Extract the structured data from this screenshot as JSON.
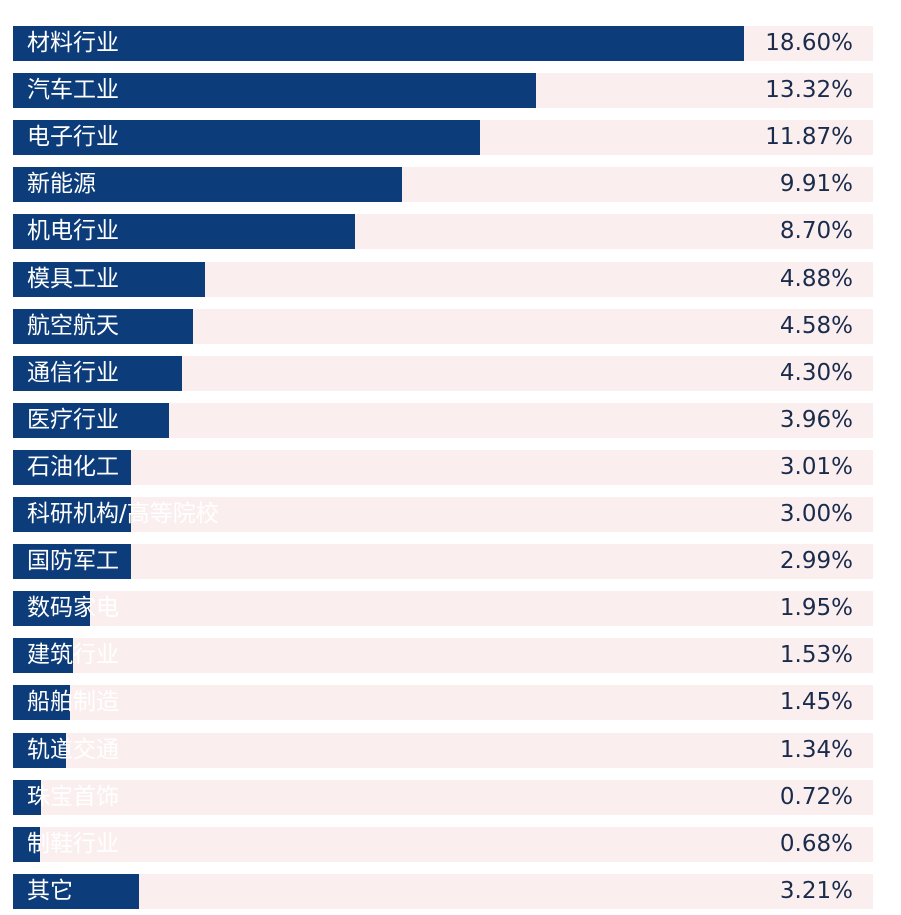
{
  "chart_data": {
    "type": "bar",
    "orientation": "horizontal",
    "categories": [
      "材料行业",
      "汽车工业",
      "电子行业",
      "新能源",
      "机电行业",
      "模具工业",
      "航空航天",
      "通信行业",
      "医疗行业",
      "石油化工",
      "科研机构/高等院校",
      "国防军工",
      "数码家电",
      "建筑行业",
      "船舶制造",
      "轨道交通",
      "珠宝首饰",
      "制鞋行业",
      "其它"
    ],
    "values": [
      18.6,
      13.32,
      11.87,
      9.91,
      8.7,
      4.88,
      4.58,
      4.3,
      3.96,
      3.01,
      3.0,
      2.99,
      1.95,
      1.53,
      1.45,
      1.34,
      0.72,
      0.68,
      3.21
    ],
    "value_labels": [
      "18.60%",
      "13.32%",
      "11.87%",
      "9.91%",
      "8.70%",
      "4.88%",
      "4.58%",
      "4.30%",
      "3.96%",
      "3.01%",
      "3.00%",
      "2.99%",
      "1.95%",
      "1.53%",
      "1.45%",
      "1.34%",
      "0.72%",
      "0.68%",
      "3.21%"
    ],
    "title": "",
    "xlabel": "",
    "ylabel": "",
    "xlim": [
      0,
      23
    ],
    "grid": false,
    "legend": "none",
    "colors": {
      "bar": "#0d3c7a",
      "track": "#faefee",
      "category_text": "#ffffff",
      "value_text": "#1a2b4c"
    }
  }
}
